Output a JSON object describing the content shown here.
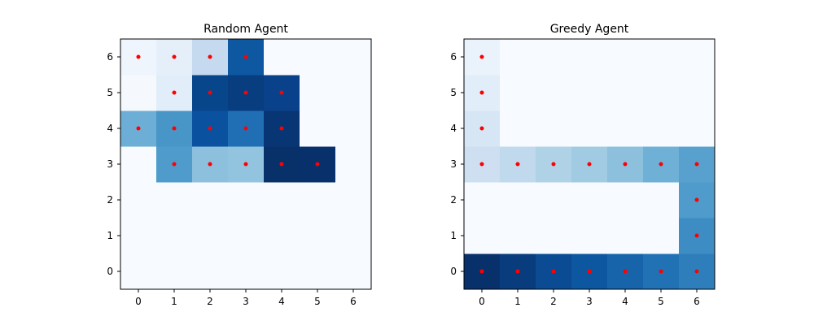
{
  "chart_data": [
    {
      "type": "heatmap",
      "title": "Random Agent",
      "x": [
        0,
        1,
        2,
        3,
        4,
        5,
        6
      ],
      "y": [
        0,
        1,
        2,
        3,
        4,
        5,
        6
      ],
      "xlim": [
        -0.5,
        6.5
      ],
      "ylim": [
        -0.5,
        6.5
      ],
      "colormap": "Blues",
      "grid": false,
      "cell_colors_by_row_y": {
        "6": [
          "#eef5fd",
          "#e5effa",
          "#c5daee",
          "#0e58a2",
          "#f7fbff",
          "#f7fbff",
          "#f7fbff"
        ],
        "5": [
          "#f5f9fe",
          "#e1edf8",
          "#08468b",
          "#083d7f",
          "#09418a",
          "#f7fbff",
          "#f7fbff"
        ],
        "4": [
          "#6caed6",
          "#4896c8",
          "#0a52a0",
          "#206fb5",
          "#083573",
          "#f7fbff",
          "#f7fbff"
        ],
        "3": [
          "#f7fbff",
          "#4f9bcb",
          "#8dc0dd",
          "#93c4df",
          "#08316a",
          "#08306b",
          "#f7fbff"
        ],
        "2": [
          "#f7fbff",
          "#f7fbff",
          "#f7fbff",
          "#f7fbff",
          "#f7fbff",
          "#f7fbff",
          "#f7fbff"
        ],
        "1": [
          "#f7fbff",
          "#f7fbff",
          "#f7fbff",
          "#f7fbff",
          "#f7fbff",
          "#f7fbff",
          "#f7fbff"
        ],
        "0": [
          "#f7fbff",
          "#f7fbff",
          "#f7fbff",
          "#f7fbff",
          "#f7fbff",
          "#f7fbff",
          "#f7fbff"
        ]
      },
      "visited_points": [
        [
          0,
          6
        ],
        [
          1,
          6
        ],
        [
          2,
          6
        ],
        [
          3,
          6
        ],
        [
          1,
          5
        ],
        [
          2,
          5
        ],
        [
          3,
          5
        ],
        [
          4,
          5
        ],
        [
          0,
          4
        ],
        [
          1,
          4
        ],
        [
          2,
          4
        ],
        [
          3,
          4
        ],
        [
          4,
          4
        ],
        [
          1,
          3
        ],
        [
          2,
          3
        ],
        [
          3,
          3
        ],
        [
          4,
          3
        ],
        [
          5,
          3
        ]
      ],
      "marker_color": "#ff0000"
    },
    {
      "type": "heatmap",
      "title": "Greedy Agent",
      "x": [
        0,
        1,
        2,
        3,
        4,
        5,
        6
      ],
      "y": [
        0,
        1,
        2,
        3,
        4,
        5,
        6
      ],
      "xlim": [
        -0.5,
        6.5
      ],
      "ylim": [
        -0.5,
        6.5
      ],
      "colormap": "Blues",
      "grid": false,
      "cell_colors_by_row_y": {
        "6": [
          "#eaf3fb",
          "#f7fbff",
          "#f7fbff",
          "#f7fbff",
          "#f7fbff",
          "#f7fbff",
          "#f7fbff"
        ],
        "5": [
          "#e1edf8",
          "#f7fbff",
          "#f7fbff",
          "#f7fbff",
          "#f7fbff",
          "#f7fbff",
          "#f7fbff"
        ],
        "4": [
          "#d6e6f4",
          "#f7fbff",
          "#f7fbff",
          "#f7fbff",
          "#f7fbff",
          "#f7fbff",
          "#f7fbff"
        ],
        "3": [
          "#cddff1",
          "#c1d9ed",
          "#b0d2e7",
          "#a0cbe2",
          "#8cc0dd",
          "#6fb0d7",
          "#58a1cf"
        ],
        "2": [
          "#f7fbff",
          "#f7fbff",
          "#f7fbff",
          "#f7fbff",
          "#f7fbff",
          "#f7fbff",
          "#4f9bcb"
        ],
        "1": [
          "#f7fbff",
          "#f7fbff",
          "#f7fbff",
          "#f7fbff",
          "#f7fbff",
          "#f7fbff",
          "#3d8dc4"
        ],
        "0": [
          "#08306b",
          "#083c7d",
          "#0a4b93",
          "#0d57a1",
          "#1764ab",
          "#2171b5",
          "#2f7ebc"
        ]
      },
      "visited_points": [
        [
          0,
          6
        ],
        [
          0,
          5
        ],
        [
          0,
          4
        ],
        [
          0,
          3
        ],
        [
          1,
          3
        ],
        [
          2,
          3
        ],
        [
          3,
          3
        ],
        [
          4,
          3
        ],
        [
          5,
          3
        ],
        [
          6,
          3
        ],
        [
          6,
          2
        ],
        [
          6,
          1
        ],
        [
          0,
          0
        ],
        [
          1,
          0
        ],
        [
          2,
          0
        ],
        [
          3,
          0
        ],
        [
          4,
          0
        ],
        [
          5,
          0
        ],
        [
          6,
          0
        ]
      ],
      "marker_color": "#ff0000"
    }
  ]
}
